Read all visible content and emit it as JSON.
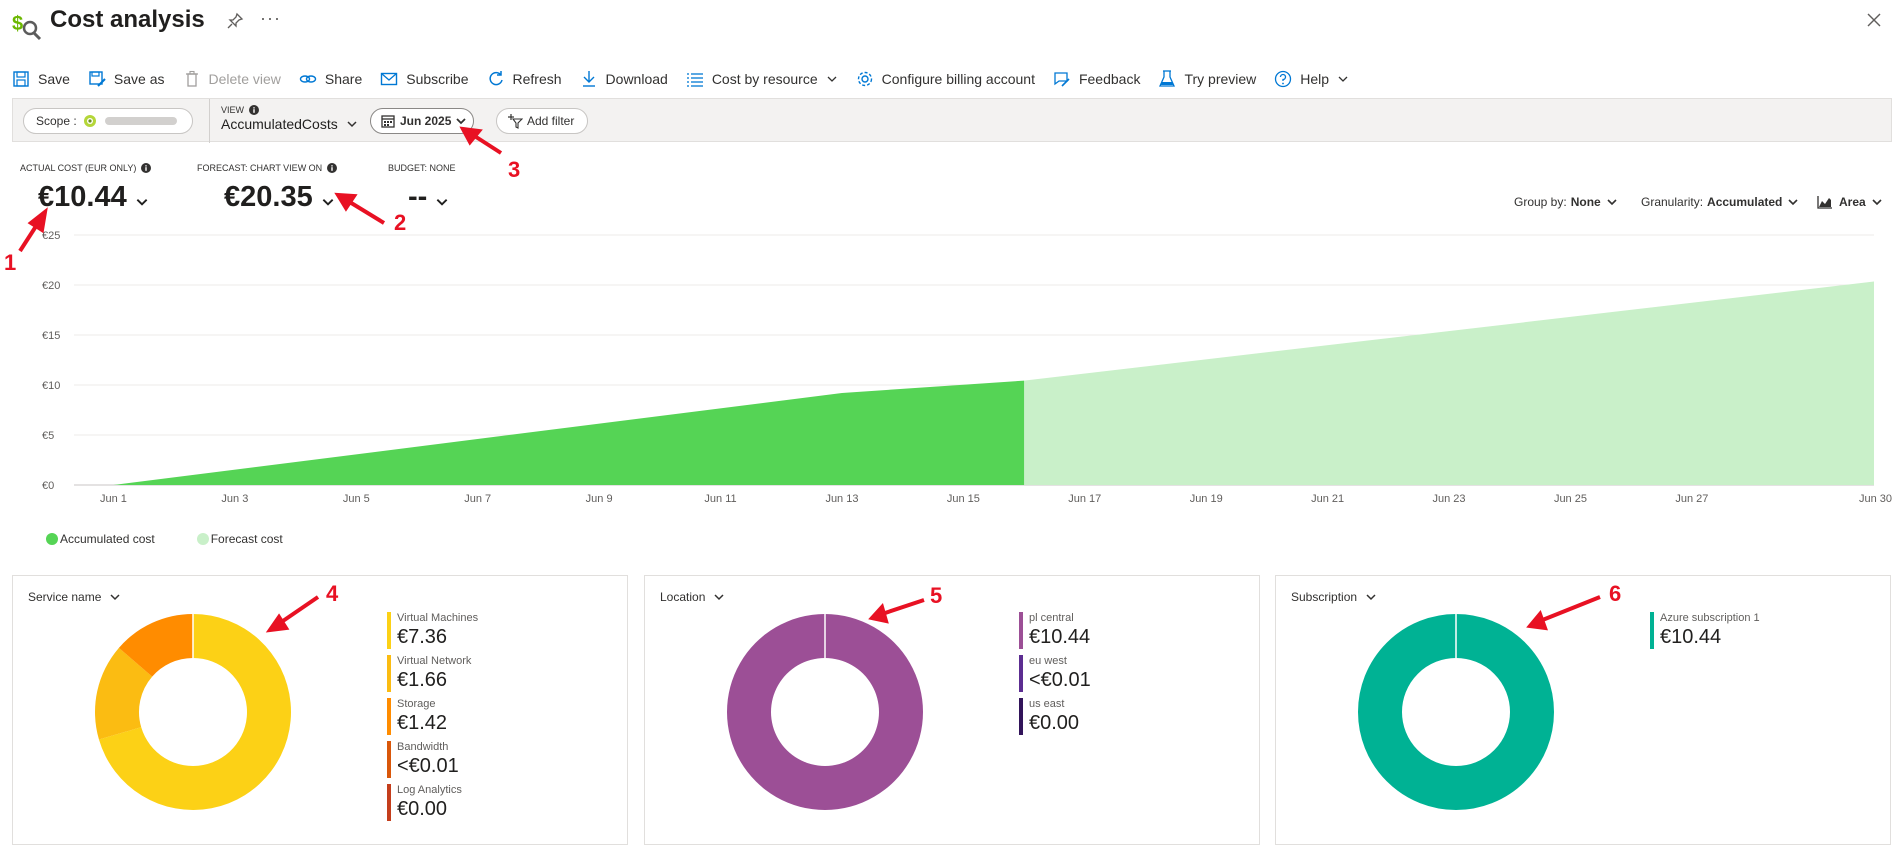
{
  "header": {
    "title": "Cost analysis",
    "more": "···"
  },
  "toolbar": [
    {
      "id": "save",
      "label": "Save",
      "icon": "save-icon",
      "disabled": false,
      "dropdown": false
    },
    {
      "id": "save-as",
      "label": "Save as",
      "icon": "save-as-icon",
      "disabled": false,
      "dropdown": false
    },
    {
      "id": "delete-view",
      "label": "Delete view",
      "icon": "trash-icon",
      "disabled": true,
      "dropdown": false
    },
    {
      "id": "share",
      "label": "Share",
      "icon": "share-link-icon",
      "disabled": false,
      "dropdown": false
    },
    {
      "id": "subscribe",
      "label": "Subscribe",
      "icon": "mail-icon",
      "disabled": false,
      "dropdown": false
    },
    {
      "id": "refresh",
      "label": "Refresh",
      "icon": "refresh-icon",
      "disabled": false,
      "dropdown": false
    },
    {
      "id": "download",
      "label": "Download",
      "icon": "download-icon",
      "disabled": false,
      "dropdown": false
    },
    {
      "id": "cost-by-resource",
      "label": "Cost by resource",
      "icon": "list-icon",
      "disabled": false,
      "dropdown": true
    },
    {
      "id": "configure-billing",
      "label": "Configure billing account",
      "icon": "gear-icon",
      "disabled": false,
      "dropdown": false
    },
    {
      "id": "feedback",
      "label": "Feedback",
      "icon": "feedback-icon",
      "disabled": false,
      "dropdown": false
    },
    {
      "id": "try-preview",
      "label": "Try preview",
      "icon": "flask-icon",
      "disabled": false,
      "dropdown": false
    },
    {
      "id": "help",
      "label": "Help",
      "icon": "help-icon",
      "disabled": false,
      "dropdown": true
    }
  ],
  "filters": {
    "scope_label": "Scope :",
    "view_label": "VIEW",
    "view_value": "AccumulatedCosts",
    "date": "Jun 2025",
    "add_filter": "Add filter"
  },
  "kpis": {
    "actual": {
      "label": "ACTUAL COST (EUR ONLY)",
      "value": "€10.44"
    },
    "forecast": {
      "label": "FORECAST: CHART VIEW ON",
      "value": "€20.35"
    },
    "budget": {
      "label": "BUDGET: NONE",
      "value": "--"
    }
  },
  "controls": {
    "group_by_label": "Group by:",
    "group_by_value": "None",
    "granularity_label": "Granularity:",
    "granularity_value": "Accumulated",
    "chart_type": "Area"
  },
  "legend": {
    "accumulated": "Accumulated cost",
    "forecast": "Forecast cost"
  },
  "colors": {
    "accumulated": "#55d455",
    "forecast": "#c9f0c9",
    "annotation": "#e81123"
  },
  "chart_data": {
    "type": "area",
    "ylim": [
      0,
      25
    ],
    "yticks": [
      "€0",
      "€5",
      "€10",
      "€15",
      "€20",
      "€25"
    ],
    "ytick_values": [
      0,
      5,
      10,
      15,
      20,
      25
    ],
    "xticks": [
      "Jun 1",
      "Jun 3",
      "Jun 5",
      "Jun 7",
      "Jun 9",
      "Jun 11",
      "Jun 13",
      "Jun 15",
      "Jun 17",
      "Jun 19",
      "Jun 21",
      "Jun 23",
      "Jun 25",
      "Jun 27",
      "Jun 30"
    ],
    "xtick_days": [
      1,
      3,
      5,
      7,
      9,
      11,
      13,
      15,
      17,
      19,
      21,
      23,
      25,
      27,
      30
    ],
    "grid": true,
    "series": [
      {
        "name": "Accumulated cost",
        "x": [
          1,
          13,
          16
        ],
        "y": [
          0,
          9.2,
          10.44
        ]
      },
      {
        "name": "Forecast cost",
        "x": [
          16,
          30
        ],
        "y": [
          10.44,
          20.35
        ]
      }
    ]
  },
  "cards": [
    {
      "id": "service-name",
      "title": "Service name",
      "items": [
        {
          "name": "Virtual Machines",
          "value": "€7.36",
          "amount": 7.36,
          "color": "#fcd116"
        },
        {
          "name": "Virtual Network",
          "value": "€1.66",
          "amount": 1.66,
          "color": "#fbbc12"
        },
        {
          "name": "Storage",
          "value": "€1.42",
          "amount": 1.42,
          "color": "#ff8c00"
        },
        {
          "name": "Bandwidth",
          "value": "<€0.01",
          "amount": 0.005,
          "color": "#d9570a"
        },
        {
          "name": "Log Analytics",
          "value": "€0.00",
          "amount": 0,
          "color": "#c43e1c"
        }
      ]
    },
    {
      "id": "location",
      "title": "Location",
      "items": [
        {
          "name": "pl central",
          "value": "€10.44",
          "amount": 10.44,
          "color": "#9c4f96"
        },
        {
          "name": "eu west",
          "value": "<€0.01",
          "amount": 0.005,
          "color": "#5c2d91"
        },
        {
          "name": "us east",
          "value": "€0.00",
          "amount": 0,
          "color": "#32145a"
        }
      ]
    },
    {
      "id": "subscription",
      "title": "Subscription",
      "items": [
        {
          "name": "Azure subscription 1",
          "value": "€10.44",
          "amount": 10.44,
          "color": "#00b294"
        }
      ]
    }
  ],
  "annotations": [
    "1",
    "2",
    "3",
    "4",
    "5",
    "6"
  ]
}
